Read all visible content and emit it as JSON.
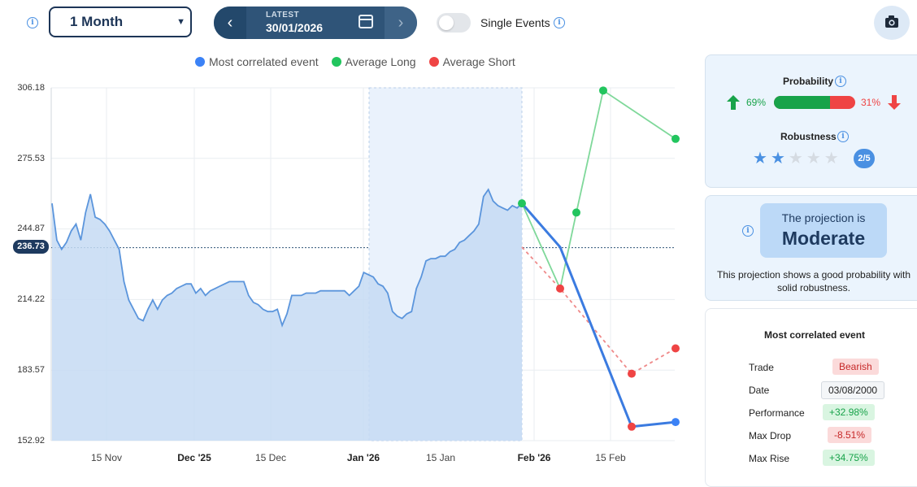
{
  "toolbar": {
    "period_value": "1 Month",
    "nav_label": "LATEST",
    "nav_date": "30/01/2026",
    "single_events_label": "Single Events"
  },
  "legend": [
    {
      "label": "Most correlated event",
      "color": "#3b82f6"
    },
    {
      "label": "Average Long",
      "color": "#22c55e"
    },
    {
      "label": "Average Short",
      "color": "#ef4444"
    }
  ],
  "chart_data": {
    "type": "line",
    "y_ticks": [
      "306.18",
      "275.53",
      "244.87",
      "214.22",
      "183.57",
      "152.92"
    ],
    "ylim": [
      152.92,
      306.18
    ],
    "current_value": "236.73",
    "x_ticks": [
      {
        "label": "15 Nov",
        "bold": false
      },
      {
        "label": "Dec '25",
        "bold": true
      },
      {
        "label": "15 Dec",
        "bold": false
      },
      {
        "label": "Jan '26",
        "bold": true
      },
      {
        "label": "15 Jan",
        "bold": false
      },
      {
        "label": "Feb '26",
        "bold": true
      },
      {
        "label": "15 Feb",
        "bold": false
      }
    ],
    "price_series": {
      "name": "",
      "values": [
        256,
        240,
        236,
        239,
        244,
        247,
        240,
        252,
        260,
        250,
        249,
        247,
        244,
        240,
        236,
        222,
        214,
        210,
        206,
        205,
        210,
        214,
        210,
        214,
        216,
        217,
        219,
        220,
        221,
        221,
        217,
        219,
        216,
        218,
        219,
        220,
        221,
        222,
        222,
        222,
        222,
        216,
        213,
        212,
        210,
        209,
        209,
        210,
        203,
        208,
        216,
        216,
        216,
        217,
        217,
        217,
        218,
        218,
        218,
        218,
        218,
        218,
        216,
        218,
        220,
        226,
        225,
        224,
        221,
        220,
        217,
        209,
        207,
        206,
        208,
        209,
        219,
        224,
        231,
        232,
        232,
        233,
        233,
        235,
        236,
        239,
        240,
        242,
        244,
        247,
        259,
        262,
        257,
        255,
        254,
        253,
        255,
        254,
        256
      ]
    },
    "projection": {
      "most_correlated": [
        256,
        237,
        159,
        161
      ],
      "average_long": [
        256,
        219,
        252,
        305,
        284
      ],
      "average_short": [
        237,
        219,
        182,
        193
      ]
    }
  },
  "probability": {
    "title": "Probability",
    "long_pct_text": "69%",
    "short_pct_text": "31%",
    "long_fraction": 0.69,
    "robustness_title": "Robustness",
    "robustness_text": "2/5",
    "robustness_value": 2,
    "robustness_max": 5
  },
  "projection_card": {
    "line1": "The projection is",
    "line2": "Moderate",
    "description": "This projection shows a good probability with solid robustness."
  },
  "event_card": {
    "title": "Most correlated event",
    "rows": [
      {
        "label": "Trade",
        "value": "Bearish",
        "style": "red"
      },
      {
        "label": "Date",
        "value": "03/08/2000",
        "style": "neutral"
      },
      {
        "label": "Performance",
        "value": "+32.98%",
        "style": "green"
      },
      {
        "label": "Max Drop",
        "value": "-8.51%",
        "style": "red"
      },
      {
        "label": "Max Rise",
        "value": "+34.75%",
        "style": "green"
      }
    ]
  }
}
